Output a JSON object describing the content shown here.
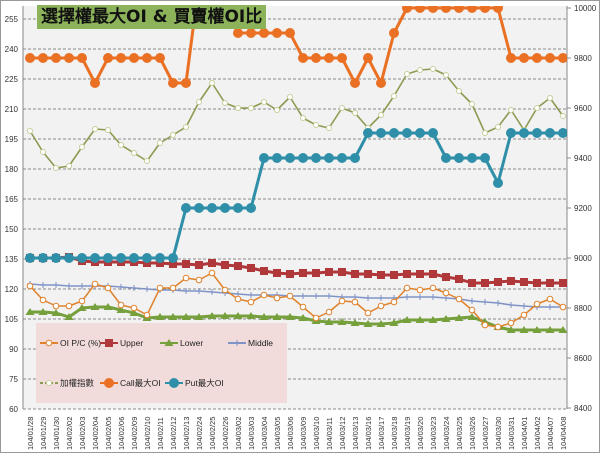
{
  "chart_data": {
    "type": "line",
    "title": "選擇權最大OI & 買賣權OI比",
    "categories": [
      "104/01/28",
      "104/01/29",
      "104/01/30",
      "104/02/02",
      "104/02/03",
      "104/02/04",
      "104/02/05",
      "104/02/06",
      "104/02/09",
      "104/02/10",
      "104/02/11",
      "104/02/12",
      "104/02/13",
      "104/02/24",
      "104/02/25",
      "104/02/26",
      "104/03/02",
      "104/03/03",
      "104/03/04",
      "104/03/05",
      "104/03/06",
      "104/03/09",
      "104/03/10",
      "104/03/11",
      "104/03/12",
      "104/03/13",
      "104/03/16",
      "104/03/17",
      "104/03/18",
      "104/03/19",
      "104/03/20",
      "104/03/23",
      "104/03/24",
      "104/03/25",
      "104/03/26",
      "104/03/27",
      "104/03/30",
      "104/03/31",
      "104/04/01",
      "104/04/02",
      "104/04/07",
      "104/04/08"
    ],
    "left_axis": {
      "ylim": [
        60,
        262
      ],
      "ticks": [
        60,
        75,
        90,
        105,
        120,
        135,
        150,
        165,
        180,
        195,
        210,
        225,
        240,
        255
      ]
    },
    "right_axis": {
      "ylim": [
        8400,
        10000
      ],
      "ticks": [
        8400,
        8600,
        8800,
        9000,
        9200,
        9400,
        9600,
        9800,
        10000
      ]
    },
    "grid": "horizontal dashed",
    "legend_placement": "bottom-left inside plot",
    "series": [
      {
        "name": "OI P/C (%)",
        "axis": "left",
        "color": "#e0822c",
        "marker": "hollow-circle",
        "values": [
          121.5,
          114.5,
          111.5,
          111.5,
          114,
          122.5,
          120.5,
          112,
          110.5,
          107,
          120.5,
          120.5,
          125.5,
          124.5,
          128,
          119.5,
          115,
          113.5,
          117,
          115.5,
          116.5,
          111,
          105.5,
          108.5,
          114,
          113.5,
          108,
          111.5,
          113.5,
          120.5,
          119.5,
          120.5,
          118,
          115,
          109.5,
          102,
          101,
          103,
          107,
          112.5,
          115,
          111
        ]
      },
      {
        "name": "Upper",
        "axis": "left",
        "color": "#b0373a",
        "marker": "square",
        "values": [
          135.5,
          135.5,
          135.5,
          136,
          134,
          133.5,
          133.5,
          133.5,
          133.5,
          133,
          133,
          132.5,
          132.5,
          132,
          133,
          132,
          131.5,
          130.5,
          129,
          128,
          127.5,
          128,
          128,
          128.5,
          128.5,
          127.5,
          127.5,
          127,
          127,
          127.5,
          127.5,
          127.5,
          126,
          125,
          123,
          123,
          123.5,
          124,
          123.5,
          123,
          123,
          123
        ]
      },
      {
        "name": "Lower",
        "axis": "left",
        "color": "#76a03c",
        "marker": "triangle",
        "values": [
          108.5,
          108.5,
          108,
          106,
          110.5,
          111,
          111,
          109.5,
          108,
          105.5,
          106,
          106,
          106,
          106,
          106.5,
          106.5,
          106.5,
          106.5,
          106,
          106,
          106,
          105.5,
          104,
          103.5,
          103.5,
          103,
          102.5,
          102.5,
          103,
          104.5,
          104.5,
          104.5,
          105,
          105.5,
          106,
          103.5,
          101,
          99.5,
          99.5,
          99.5,
          99.5,
          99.5
        ]
      },
      {
        "name": "Middle",
        "axis": "left",
        "color": "#7f93c6",
        "marker": "plus",
        "values": [
          122.5,
          122,
          122,
          121.5,
          121.5,
          121.5,
          121.5,
          121,
          120.5,
          120,
          119.5,
          119.5,
          119,
          119,
          118.5,
          118,
          117.5,
          117,
          117,
          117,
          116.5,
          116.5,
          116.5,
          116.5,
          116,
          116,
          115.5,
          115.5,
          115.5,
          116,
          116,
          116,
          115.5,
          115,
          114,
          113.5,
          113,
          112,
          111.5,
          111,
          111,
          111
        ]
      },
      {
        "name": "加權指數",
        "axis": "right",
        "color": "#8c9a52",
        "marker": "hollow-diamond",
        "values": [
          9508,
          9424,
          9360,
          9368,
          9444,
          9516,
          9512,
          9452,
          9420,
          9388,
          9460,
          9492,
          9524,
          9624,
          9700,
          9620,
          9600,
          9600,
          9624,
          9592,
          9644,
          9560,
          9532,
          9520,
          9600,
          9580,
          9520,
          9572,
          9648,
          9736,
          9752,
          9756,
          9732,
          9668,
          9616,
          9500,
          9524,
          9592,
          9512,
          9600,
          9640,
          9568
        ]
      },
      {
        "name": "Call最大OI",
        "axis": "right",
        "color": "#ea7024",
        "marker": "circle",
        "values": [
          9800,
          9800,
          9800,
          9800,
          9800,
          9700,
          9800,
          9800,
          9800,
          9800,
          9800,
          9700,
          9700,
          10100,
          10000,
          10000,
          9900,
          9900,
          9900,
          9900,
          9900,
          9800,
          9800,
          9800,
          9800,
          9700,
          9800,
          9700,
          9900,
          10000,
          10000,
          10000,
          10000,
          10000,
          10000,
          10000,
          10000,
          9800,
          9800,
          9800,
          9800,
          9800
        ]
      },
      {
        "name": "Put最大OI",
        "axis": "right",
        "color": "#2f8fa8",
        "marker": "circle",
        "values": [
          9000,
          9000,
          9000,
          9000,
          9000,
          9000,
          9000,
          9000,
          9000,
          9000,
          9000,
          9000,
          9200,
          9200,
          9200,
          9200,
          9200,
          9200,
          9400,
          9400,
          9400,
          9400,
          9400,
          9400,
          9400,
          9400,
          9500,
          9500,
          9500,
          9500,
          9500,
          9500,
          9400,
          9400,
          9400,
          9400,
          9300,
          9500,
          9500,
          9500,
          9500,
          9500
        ]
      }
    ]
  }
}
